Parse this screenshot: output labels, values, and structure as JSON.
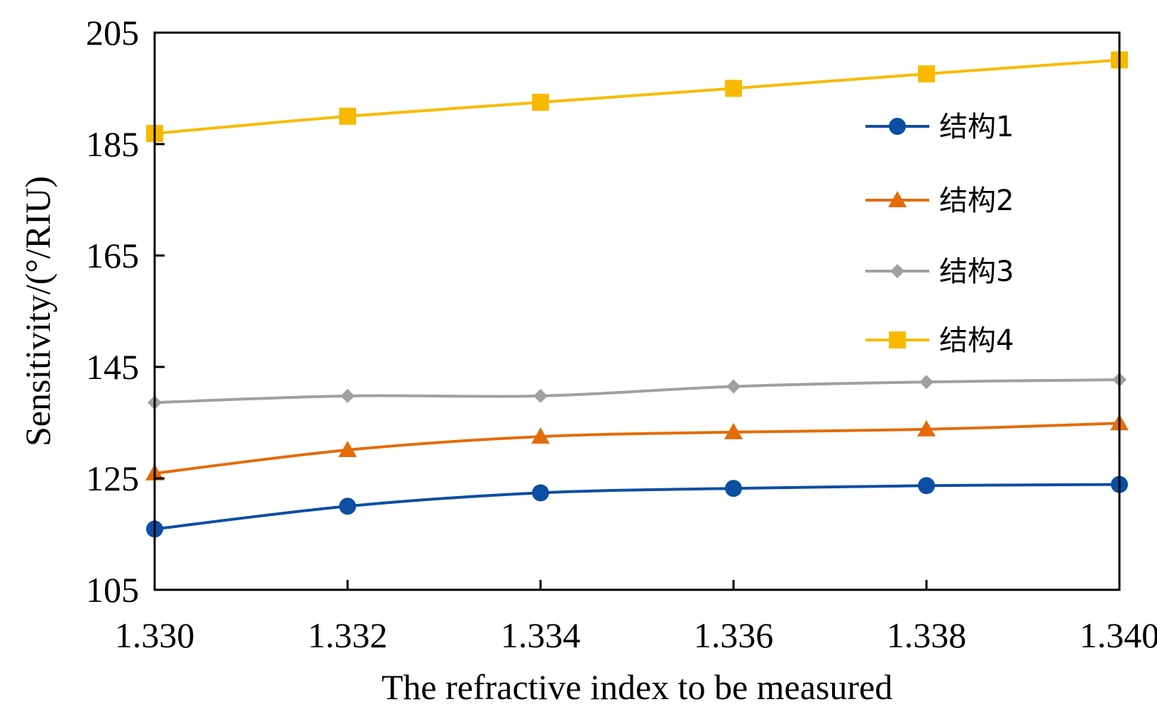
{
  "chart_data": {
    "type": "line",
    "title": "",
    "xlabel": "The refractive index to be measured",
    "ylabel": "Sensitivity/(°/RIU)",
    "x": [
      1.33,
      1.332,
      1.334,
      1.336,
      1.338,
      1.34
    ],
    "x_tick_labels": [
      "1.330",
      "1.332",
      "1.334",
      "1.336",
      "1.338",
      "1.340"
    ],
    "xlim": [
      1.33,
      1.34
    ],
    "ylim": [
      105,
      205
    ],
    "y_ticks": [
      105,
      125,
      145,
      165,
      185,
      205
    ],
    "y_tick_labels": [
      "105",
      "125",
      "145",
      "165",
      "185",
      "205"
    ],
    "grid": false,
    "legend_position": "right",
    "series": [
      {
        "name": "结构1",
        "marker": "circle",
        "color": "#0B4EA2",
        "values": [
          115.9,
          120.0,
          122.4,
          123.2,
          123.7,
          123.9
        ]
      },
      {
        "name": "结构2",
        "marker": "triangle",
        "color": "#E36C09",
        "values": [
          125.9,
          130.1,
          132.5,
          133.3,
          133.8,
          134.9
        ]
      },
      {
        "name": "结构3",
        "marker": "diamond",
        "color": "#A0A0A0",
        "values": [
          138.6,
          139.8,
          139.8,
          141.5,
          142.3,
          142.7
        ]
      },
      {
        "name": "结构4",
        "marker": "square",
        "color": "#F8BA00",
        "values": [
          186.9,
          190.0,
          192.5,
          195.0,
          197.6,
          200.1
        ]
      }
    ]
  }
}
